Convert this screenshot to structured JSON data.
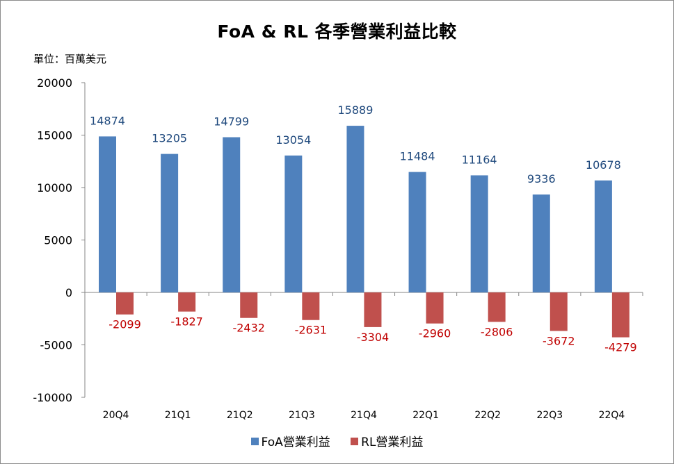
{
  "chart_data": {
    "type": "bar",
    "title": "FoA & RL 各季營業利益比較",
    "unit_label": "單位：百萬美元",
    "categories": [
      "20Q4",
      "21Q1",
      "21Q2",
      "21Q3",
      "21Q4",
      "22Q1",
      "22Q2",
      "22Q3",
      "22Q4"
    ],
    "series": [
      {
        "name": "FoA營業利益",
        "color": "#4f81bd",
        "label_color": "#1f497d",
        "values": [
          14874,
          13205,
          14799,
          13054,
          15889,
          11484,
          11164,
          9336,
          10678
        ]
      },
      {
        "name": "RL營業利益",
        "color": "#c0504d",
        "label_color": "#c00000",
        "values": [
          -2099,
          -1827,
          -2432,
          -2631,
          -3304,
          -2960,
          -2806,
          -3672,
          -4279
        ]
      }
    ],
    "ylim": [
      -10000,
      20000
    ],
    "yticks": [
      20000,
      15000,
      10000,
      5000,
      0,
      -5000,
      -10000
    ],
    "grid": false,
    "legend_position": "bottom"
  }
}
